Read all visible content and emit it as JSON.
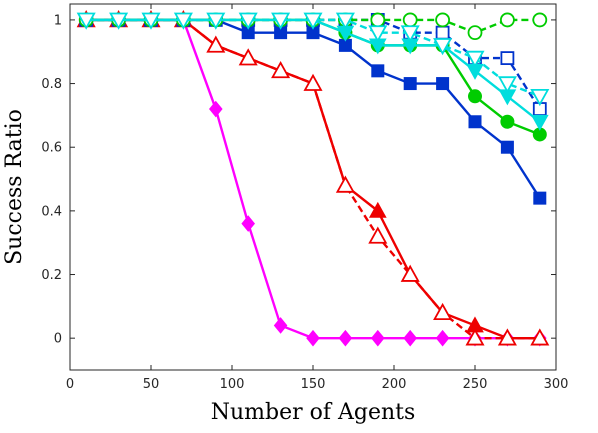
{
  "chart_data": {
    "type": "line",
    "title": "",
    "xlabel": "Number of Agents",
    "ylabel": "Success Ratio",
    "xlim": [
      0,
      300
    ],
    "ylim": [
      -0.1,
      1.05
    ],
    "xticks": [
      0,
      50,
      100,
      150,
      200,
      250,
      300
    ],
    "yticks": [
      0,
      0.2,
      0.4,
      0.6,
      0.8,
      1
    ],
    "grid": false,
    "legend": "none",
    "series": [
      {
        "color": "#ff00ff",
        "marker": "diamond",
        "filled": true,
        "dashed": false,
        "x": [
          10,
          30,
          50,
          70,
          90,
          110,
          130,
          150,
          170,
          190,
          210,
          230,
          250,
          270,
          290
        ],
        "y": [
          1,
          1,
          1,
          1,
          0.72,
          0.36,
          0.04,
          0,
          0,
          0,
          0,
          0,
          0,
          0,
          0
        ]
      },
      {
        "color": "#ee0000",
        "marker": "triangle-up",
        "filled": true,
        "dashed": false,
        "x": [
          10,
          30,
          50,
          70,
          90,
          110,
          130,
          150,
          170,
          190,
          210,
          230,
          250,
          270,
          290
        ],
        "y": [
          1,
          1,
          1,
          1,
          0.92,
          0.88,
          0.84,
          0.8,
          0.48,
          0.4,
          0.2,
          0.08,
          0.04,
          0,
          0
        ]
      },
      {
        "color": "#ee0000",
        "marker": "triangle-up",
        "filled": false,
        "dashed": true,
        "x": [
          10,
          30,
          50,
          70,
          90,
          110,
          130,
          150,
          170,
          190,
          210,
          230,
          250,
          270,
          290
        ],
        "y": [
          1,
          1,
          1,
          1,
          0.92,
          0.88,
          0.84,
          0.8,
          0.48,
          0.32,
          0.2,
          0.08,
          0,
          0,
          0
        ]
      },
      {
        "color": "#0033cc",
        "marker": "square",
        "filled": true,
        "dashed": false,
        "x": [
          10,
          30,
          50,
          70,
          90,
          110,
          130,
          150,
          170,
          190,
          210,
          230,
          250,
          270,
          290
        ],
        "y": [
          1,
          1,
          1,
          1,
          1,
          0.96,
          0.96,
          0.96,
          0.92,
          0.84,
          0.8,
          0.8,
          0.68,
          0.6,
          0.44
        ]
      },
      {
        "color": "#0033cc",
        "marker": "square",
        "filled": false,
        "dashed": true,
        "x": [
          10,
          30,
          50,
          70,
          90,
          110,
          130,
          150,
          170,
          190,
          210,
          230,
          250,
          270,
          290
        ],
        "y": [
          1,
          1,
          1,
          1,
          1,
          1,
          1,
          1,
          1,
          1,
          0.96,
          0.96,
          0.88,
          0.88,
          0.72
        ]
      },
      {
        "color": "#00cc00",
        "marker": "circle",
        "filled": true,
        "dashed": false,
        "x": [
          10,
          30,
          50,
          70,
          90,
          110,
          130,
          150,
          170,
          190,
          210,
          230,
          250,
          270,
          290
        ],
        "y": [
          1,
          1,
          1,
          1,
          1,
          1,
          1,
          1,
          0.96,
          0.92,
          0.92,
          0.92,
          0.76,
          0.68,
          0.64
        ]
      },
      {
        "color": "#00cc00",
        "marker": "circle",
        "filled": false,
        "dashed": true,
        "x": [
          10,
          30,
          50,
          70,
          90,
          110,
          130,
          150,
          170,
          190,
          210,
          230,
          250,
          270,
          290
        ],
        "y": [
          1,
          1,
          1,
          1,
          1,
          1,
          1,
          1,
          1,
          1,
          1,
          1,
          0.96,
          1,
          1
        ]
      },
      {
        "color": "#00dddd",
        "marker": "triangle-down",
        "filled": true,
        "dashed": false,
        "x": [
          10,
          30,
          50,
          70,
          90,
          110,
          130,
          150,
          170,
          190,
          210,
          230,
          250,
          270,
          290
        ],
        "y": [
          1,
          1,
          1,
          1,
          1,
          1,
          1,
          1,
          0.96,
          0.92,
          0.92,
          0.92,
          0.84,
          0.76,
          0.68
        ]
      },
      {
        "color": "#00dddd",
        "marker": "triangle-down",
        "filled": false,
        "dashed": true,
        "x": [
          10,
          30,
          50,
          70,
          90,
          110,
          130,
          150,
          170,
          190,
          210,
          230,
          250,
          270,
          290
        ],
        "y": [
          1,
          1,
          1,
          1,
          1,
          1,
          1,
          1,
          1,
          0.96,
          0.96,
          0.92,
          0.88,
          0.8,
          0.76
        ]
      }
    ]
  }
}
